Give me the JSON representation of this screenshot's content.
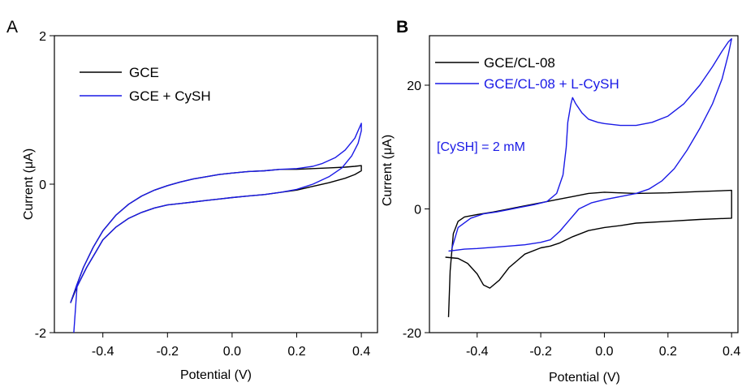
{
  "colors": {
    "black_series": "#000000",
    "blue_series": "#1a1ae6"
  },
  "chart_data": [
    {
      "panel_label": "A",
      "type": "line",
      "xlabel": "Potential (V)",
      "ylabel_prefix": "Current (",
      "ylabel_mu": "μ",
      "ylabel_suffix": "A)",
      "xlim": [
        -0.55,
        0.45
      ],
      "ylim": [
        -2,
        2
      ],
      "xticks": [
        -0.4,
        -0.2,
        0.0,
        0.2,
        0.4
      ],
      "xtick_labels": [
        "-0.4",
        "-0.2",
        "0.0",
        "0.2",
        "0.4"
      ],
      "yticks": [
        -2,
        0,
        2
      ],
      "ytick_labels": [
        "-2",
        "0",
        "2"
      ],
      "legend_position": "top-left",
      "series": [
        {
          "name": "GCE",
          "color": "#000000",
          "x": [
            -0.5,
            -0.48,
            -0.45,
            -0.42,
            -0.4,
            -0.36,
            -0.32,
            -0.28,
            -0.24,
            -0.2,
            -0.16,
            -0.12,
            -0.08,
            -0.04,
            0.0,
            0.05,
            0.1,
            0.15,
            0.2,
            0.25,
            0.3,
            0.35,
            0.38,
            0.4,
            0.4,
            0.38,
            0.35,
            0.3,
            0.25,
            0.2,
            0.15,
            0.1,
            0.05,
            0.0,
            -0.04,
            -0.08,
            -0.12,
            -0.16,
            -0.2,
            -0.24,
            -0.28,
            -0.32,
            -0.36,
            -0.4,
            -0.43,
            -0.46,
            -0.48,
            -0.5
          ],
          "y": [
            -1.6,
            -1.38,
            -1.12,
            -0.9,
            -0.75,
            -0.58,
            -0.46,
            -0.38,
            -0.32,
            -0.28,
            -0.26,
            -0.24,
            -0.22,
            -0.2,
            -0.18,
            -0.16,
            -0.14,
            -0.11,
            -0.08,
            -0.03,
            0.02,
            0.08,
            0.13,
            0.18,
            0.25,
            0.24,
            0.23,
            0.22,
            0.21,
            0.2,
            0.2,
            0.18,
            0.17,
            0.15,
            0.13,
            0.1,
            0.07,
            0.03,
            -0.02,
            -0.08,
            -0.16,
            -0.27,
            -0.42,
            -0.63,
            -0.85,
            -1.12,
            -1.35,
            -1.6
          ]
        },
        {
          "name": "GCE + CySH",
          "color": "#1a1ae6",
          "x": [
            -0.49,
            -0.48,
            -0.45,
            -0.42,
            -0.4,
            -0.36,
            -0.32,
            -0.28,
            -0.24,
            -0.2,
            -0.16,
            -0.12,
            -0.08,
            -0.04,
            0.0,
            0.05,
            0.1,
            0.15,
            0.2,
            0.25,
            0.3,
            0.34,
            0.37,
            0.39,
            0.4,
            0.4,
            0.38,
            0.35,
            0.32,
            0.28,
            0.25,
            0.2,
            0.15,
            0.1,
            0.05,
            0.0,
            -0.04,
            -0.08,
            -0.12,
            -0.16,
            -0.2,
            -0.24,
            -0.28,
            -0.32,
            -0.36,
            -0.4,
            -0.43,
            -0.46,
            -0.48,
            -0.5
          ],
          "y": [
            -2.0,
            -1.38,
            -1.12,
            -0.9,
            -0.75,
            -0.58,
            -0.46,
            -0.38,
            -0.32,
            -0.28,
            -0.26,
            -0.24,
            -0.22,
            -0.2,
            -0.18,
            -0.16,
            -0.14,
            -0.11,
            -0.07,
            0.0,
            0.1,
            0.22,
            0.38,
            0.55,
            0.72,
            0.82,
            0.62,
            0.46,
            0.36,
            0.28,
            0.24,
            0.21,
            0.2,
            0.18,
            0.17,
            0.15,
            0.13,
            0.1,
            0.07,
            0.03,
            -0.02,
            -0.08,
            -0.16,
            -0.27,
            -0.42,
            -0.63,
            -0.85,
            -1.12,
            -1.35,
            -1.6
          ]
        }
      ]
    },
    {
      "panel_label": "B",
      "type": "line",
      "xlabel": "Potential (V)",
      "ylabel_prefix": "Current (",
      "ylabel_mu": "μ",
      "ylabel_suffix": "A)",
      "xlim": [
        -0.55,
        0.42
      ],
      "ylim": [
        -20,
        28
      ],
      "xticks": [
        -0.4,
        -0.2,
        0.0,
        0.2,
        0.4
      ],
      "xtick_labels": [
        "-0.4",
        "-0.2",
        "0.0",
        "0.2",
        "0.4"
      ],
      "yticks": [
        -20,
        0,
        20
      ],
      "ytick_labels": [
        "-20",
        "0",
        "20"
      ],
      "legend_position": "top-left",
      "annotation": "[CySH] = 2 mM",
      "series": [
        {
          "name": "GCE/CL-08",
          "color": "#000000",
          "x": [
            -0.49,
            -0.485,
            -0.475,
            -0.46,
            -0.44,
            -0.4,
            -0.35,
            -0.3,
            -0.25,
            -0.2,
            -0.15,
            -0.1,
            -0.05,
            0.0,
            0.05,
            0.1,
            0.2,
            0.3,
            0.4,
            0.4,
            0.3,
            0.2,
            0.1,
            0.05,
            0.0,
            -0.05,
            -0.1,
            -0.14,
            -0.17,
            -0.2,
            -0.25,
            -0.3,
            -0.33,
            -0.36,
            -0.38,
            -0.4,
            -0.43,
            -0.46,
            -0.5
          ],
          "y": [
            -17.5,
            -10.0,
            -4.0,
            -2.0,
            -1.3,
            -0.9,
            -0.5,
            0.0,
            0.5,
            1.0,
            1.5,
            2.0,
            2.5,
            2.7,
            2.6,
            2.5,
            2.6,
            2.8,
            3.0,
            -1.5,
            -1.7,
            -2.0,
            -2.3,
            -2.7,
            -3.0,
            -3.5,
            -4.5,
            -5.5,
            -6.0,
            -6.3,
            -7.3,
            -9.5,
            -11.5,
            -12.8,
            -12.3,
            -10.5,
            -8.8,
            -8.0,
            -7.8
          ]
        },
        {
          "name": "GCE/CL-08 + L-CySH",
          "color": "#1a1ae6",
          "x": [
            -0.48,
            -0.46,
            -0.42,
            -0.38,
            -0.34,
            -0.3,
            -0.26,
            -0.22,
            -0.18,
            -0.15,
            -0.13,
            -0.12,
            -0.115,
            -0.105,
            -0.1,
            -0.09,
            -0.07,
            -0.05,
            -0.02,
            0.0,
            0.05,
            0.1,
            0.15,
            0.2,
            0.25,
            0.3,
            0.34,
            0.37,
            0.39,
            0.4,
            0.39,
            0.37,
            0.34,
            0.3,
            0.26,
            0.22,
            0.18,
            0.14,
            0.1,
            0.05,
            0.0,
            -0.04,
            -0.08,
            -0.11,
            -0.14,
            -0.17,
            -0.2,
            -0.25,
            -0.3,
            -0.35,
            -0.4,
            -0.44,
            -0.47,
            -0.49
          ],
          "y": [
            -6.5,
            -3.0,
            -1.5,
            -0.8,
            -0.5,
            -0.1,
            0.3,
            0.7,
            1.2,
            2.5,
            5.5,
            10.0,
            14.0,
            17.0,
            18.0,
            17.0,
            15.5,
            14.5,
            14.0,
            13.8,
            13.5,
            13.5,
            14.0,
            15.0,
            17.0,
            20.0,
            23.0,
            25.5,
            27.0,
            27.5,
            25.0,
            21.0,
            17.0,
            13.0,
            9.5,
            6.5,
            4.5,
            3.2,
            2.5,
            2.0,
            1.5,
            1.0,
            0.0,
            -1.8,
            -3.6,
            -5.0,
            -5.4,
            -5.8,
            -6.0,
            -6.2,
            -6.4,
            -6.5,
            -6.7,
            -6.8
          ]
        }
      ]
    }
  ]
}
